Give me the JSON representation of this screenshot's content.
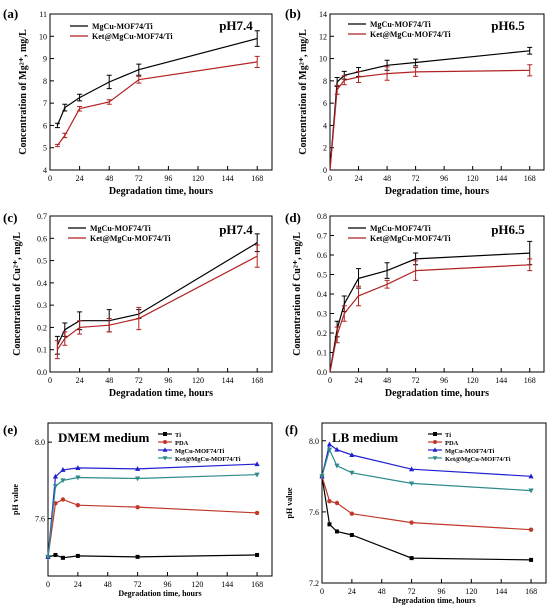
{
  "chart_data": [
    {
      "panel": "(a)",
      "type": "line",
      "annotation": "pH7.4",
      "xlabel": "Degradation time, hours",
      "ylabel": "Concentration of Mg²⁺, mg/L",
      "xlim": [
        0,
        180
      ],
      "ylim": [
        4,
        11
      ],
      "xticks": [
        0,
        24,
        48,
        72,
        96,
        120,
        144,
        168
      ],
      "yticks": [
        4,
        5,
        6,
        7,
        8,
        9,
        10,
        11
      ],
      "legend_position": "top-left",
      "series": [
        {
          "name": "MgCu-MOF74/Ti",
          "color": "#000000",
          "marker": "none",
          "x": [
            6,
            12,
            24,
            48,
            72,
            168
          ],
          "y": [
            6.0,
            6.8,
            7.25,
            7.95,
            8.5,
            9.9
          ],
          "err": [
            0.1,
            0.15,
            0.15,
            0.3,
            0.25,
            0.35
          ]
        },
        {
          "name": "Ket@MgCu-MOF74/Ti",
          "color": "#b22222",
          "marker": "none",
          "x": [
            6,
            12,
            24,
            48,
            72,
            168
          ],
          "y": [
            5.1,
            5.55,
            6.75,
            7.05,
            8.05,
            8.85
          ],
          "err": [
            0.05,
            0.1,
            0.1,
            0.1,
            0.15,
            0.25
          ]
        }
      ]
    },
    {
      "panel": "(b)",
      "type": "line",
      "annotation": "pH6.5",
      "xlabel": "Degradation time, hours",
      "ylabel": "Concentration of Mg²⁺, mg/L",
      "xlim": [
        0,
        180
      ],
      "ylim": [
        0,
        14
      ],
      "xticks": [
        0,
        24,
        48,
        72,
        96,
        120,
        144,
        168
      ],
      "yticks": [
        0,
        2,
        4,
        6,
        8,
        10,
        12,
        14
      ],
      "legend_position": "top-left",
      "series": [
        {
          "name": "MgCu-MOF74/Ti",
          "color": "#000000",
          "marker": "none",
          "x": [
            0,
            6,
            12,
            24,
            48,
            72,
            168
          ],
          "y": [
            0,
            7.9,
            8.5,
            8.8,
            9.4,
            9.65,
            10.7
          ],
          "err": [
            0,
            0.4,
            0.35,
            0.4,
            0.45,
            0.3,
            0.3
          ]
        },
        {
          "name": "Ket@MgCu-MOF74/Ti",
          "color": "#b22222",
          "marker": "none",
          "x": [
            0,
            6,
            12,
            24,
            48,
            72,
            168
          ],
          "y": [
            0,
            7.2,
            8.05,
            8.35,
            8.65,
            8.8,
            8.95
          ],
          "err": [
            0,
            0.4,
            0.4,
            0.5,
            0.6,
            0.4,
            0.5
          ]
        }
      ]
    },
    {
      "panel": "(c)",
      "type": "line",
      "annotation": "pH7.4",
      "xlabel": "Degradation time, hours",
      "ylabel": "Concentration of Cu²⁺, mg/L",
      "xlim": [
        0,
        180
      ],
      "ylim": [
        0.0,
        0.7
      ],
      "xticks": [
        0,
        24,
        48,
        72,
        96,
        120,
        144,
        168
      ],
      "yticks": [
        0.0,
        0.1,
        0.2,
        0.3,
        0.4,
        0.5,
        0.6,
        0.7
      ],
      "legend_position": "top-left",
      "series": [
        {
          "name": "MgCu-MOF74/Ti",
          "color": "#000000",
          "marker": "none",
          "x": [
            6,
            12,
            24,
            48,
            72,
            168
          ],
          "y": [
            0.12,
            0.19,
            0.23,
            0.23,
            0.26,
            0.58
          ],
          "err": [
            0.04,
            0.03,
            0.04,
            0.05,
            0.02,
            0.04
          ]
        },
        {
          "name": "Ket@MgCu-MOF74/Ti",
          "color": "#b22222",
          "marker": "none",
          "x": [
            6,
            12,
            24,
            48,
            72,
            168
          ],
          "y": [
            0.1,
            0.15,
            0.2,
            0.21,
            0.24,
            0.52
          ],
          "err": [
            0.04,
            0.03,
            0.03,
            0.03,
            0.05,
            0.05
          ]
        }
      ]
    },
    {
      "panel": "(d)",
      "type": "line",
      "annotation": "pH6.5",
      "xlabel": "Degradation time, hours",
      "ylabel": "Concentration of Cu²⁺, mg/L",
      "xlim": [
        0,
        180
      ],
      "ylim": [
        0.0,
        0.8
      ],
      "xticks": [
        0,
        24,
        48,
        72,
        96,
        120,
        144,
        168
      ],
      "yticks": [
        0.0,
        0.1,
        0.2,
        0.3,
        0.4,
        0.5,
        0.6,
        0.7,
        0.8
      ],
      "legend_position": "top-left",
      "series": [
        {
          "name": "MgCu-MOF74/Ti",
          "color": "#000000",
          "marker": "none",
          "x": [
            0,
            6,
            12,
            24,
            48,
            72,
            168
          ],
          "y": [
            0,
            0.22,
            0.35,
            0.48,
            0.52,
            0.58,
            0.61
          ],
          "err": [
            0,
            0.04,
            0.04,
            0.05,
            0.04,
            0.03,
            0.06
          ]
        },
        {
          "name": "Ket@MgCu-MOF74/Ti",
          "color": "#b22222",
          "marker": "none",
          "x": [
            0,
            6,
            12,
            24,
            48,
            72,
            168
          ],
          "y": [
            0,
            0.19,
            0.3,
            0.39,
            0.45,
            0.52,
            0.55
          ],
          "err": [
            0,
            0.04,
            0.04,
            0.05,
            0.02,
            0.05,
            0.03
          ]
        }
      ]
    },
    {
      "panel": "(e)",
      "type": "line",
      "annotation": "DMEM medium",
      "xlabel": "Degradation time, hours",
      "ylabel": "pH value",
      "xlim": [
        0,
        180
      ],
      "ylim": [
        7.3,
        8.1
      ],
      "xticks": [
        0,
        24,
        48,
        72,
        96,
        120,
        144,
        168
      ],
      "yticks": [
        7.6,
        8.0
      ],
      "legend_position": "top-right",
      "series": [
        {
          "name": "Ti",
          "color": "#000000",
          "marker": "square",
          "x": [
            0,
            6,
            12,
            24,
            72,
            168
          ],
          "y": [
            7.4,
            7.41,
            7.395,
            7.405,
            7.4,
            7.41
          ]
        },
        {
          "name": "PDA",
          "color": "#c0392b",
          "marker": "circle",
          "x": [
            0,
            6,
            12,
            24,
            72,
            168
          ],
          "y": [
            7.4,
            7.68,
            7.7,
            7.67,
            7.66,
            7.63
          ]
        },
        {
          "name": "MgCu-MOF74/Ti",
          "color": "#2020d0",
          "marker": "triangle-up",
          "x": [
            0,
            6,
            12,
            24,
            72,
            168
          ],
          "y": [
            7.4,
            7.82,
            7.855,
            7.865,
            7.86,
            7.885
          ]
        },
        {
          "name": "Ket@MgCu-MOF74/Ti",
          "color": "#2e8b8b",
          "marker": "triangle-down",
          "x": [
            0,
            6,
            12,
            24,
            72,
            168
          ],
          "y": [
            7.4,
            7.77,
            7.8,
            7.815,
            7.81,
            7.83
          ]
        }
      ]
    },
    {
      "panel": "(f)",
      "type": "line",
      "annotation": "LB medium",
      "xlabel": "Degradation time, hours",
      "ylabel": "pH value",
      "xlim": [
        0,
        180
      ],
      "ylim": [
        7.2,
        8.1
      ],
      "xticks": [
        0,
        24,
        48,
        72,
        96,
        120,
        144,
        168
      ],
      "yticks": [
        7.2,
        7.6,
        8.0
      ],
      "legend_position": "top-right",
      "series": [
        {
          "name": "Ti",
          "color": "#000000",
          "marker": "square",
          "x": [
            0,
            6,
            12,
            24,
            72,
            168
          ],
          "y": [
            7.8,
            7.53,
            7.49,
            7.47,
            7.34,
            7.33
          ]
        },
        {
          "name": "PDA",
          "color": "#c0392b",
          "marker": "circle",
          "x": [
            0,
            6,
            12,
            24,
            72,
            168
          ],
          "y": [
            7.8,
            7.66,
            7.65,
            7.59,
            7.54,
            7.5
          ]
        },
        {
          "name": "MgCu-MOF74/Ti",
          "color": "#2020d0",
          "marker": "triangle-up",
          "x": [
            0,
            6,
            12,
            24,
            72,
            168
          ],
          "y": [
            7.8,
            7.98,
            7.95,
            7.92,
            7.84,
            7.8
          ]
        },
        {
          "name": "Ket@MgCu-MOF74/Ti",
          "color": "#2e8b8b",
          "marker": "triangle-down",
          "x": [
            0,
            6,
            12,
            24,
            72,
            168
          ],
          "y": [
            7.8,
            7.95,
            7.86,
            7.82,
            7.76,
            7.72
          ]
        }
      ]
    }
  ]
}
